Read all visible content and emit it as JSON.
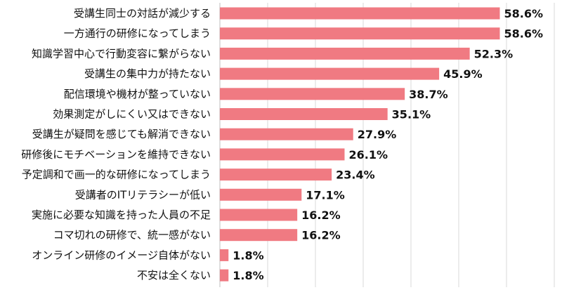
{
  "chart_data": {
    "type": "bar",
    "orientation": "horizontal",
    "unit": "%",
    "xlim": [
      0,
      100
    ],
    "grid": true,
    "bar_color": "#f07a82",
    "categories": [
      "受講生同士の対話が減少する",
      "一方通行の研修になってしまう",
      "知識学習中心で行動変容に繋がらない",
      "受講生の集中力が持たない",
      "配信環境や機材が整っていない",
      "効果測定がしにくい又はできない",
      "受講生が疑問を感じても解消できない",
      "研修後にモチベーションを維持できない",
      "予定調和で画一的な研修になってしまう",
      "受講者のITリテラシーが低い",
      "実施に必要な知識を持った人員の不足",
      "コマ切れの研修で、統一感がない",
      "オンライン研修のイメージ自体がない",
      "不安は全くない"
    ],
    "values": [
      58.6,
      58.6,
      52.3,
      45.9,
      38.7,
      35.1,
      27.9,
      26.1,
      23.4,
      17.1,
      16.2,
      16.2,
      1.8,
      1.8
    ],
    "value_labels": [
      "58.6%",
      "58.6%",
      "52.3%",
      "45.9%",
      "38.7%",
      "35.1%",
      "27.9%",
      "26.1%",
      "23.4%",
      "17.1%",
      "16.2%",
      "16.2%",
      "1.8%",
      "1.8%"
    ]
  }
}
